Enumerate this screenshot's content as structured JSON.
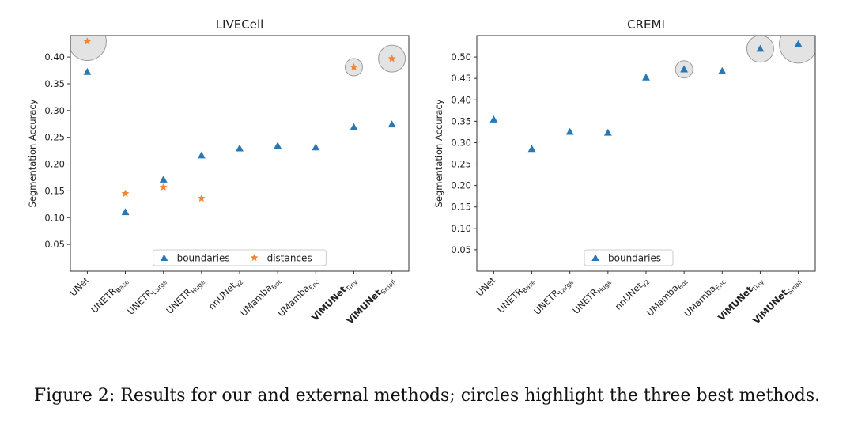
{
  "caption": "Figure 2: Results for our and external methods; circles highlight the three best methods.",
  "colors": {
    "boundaries": "#2878b5",
    "distances": "#ef8636",
    "highlight_fill": "#d9d9d9",
    "highlight_stroke": "#9a9a9a",
    "axes": "#333333"
  },
  "chart_data": [
    {
      "type": "scatter",
      "title": "LIVECell",
      "xlabel": "",
      "ylabel": "Segmentation Accuracy",
      "ylim": [
        0.0,
        0.44
      ],
      "yticks": [
        0.05,
        0.1,
        0.15,
        0.2,
        0.25,
        0.3,
        0.35,
        0.4
      ],
      "grid": false,
      "legend_position": "lower-center",
      "categories": [
        {
          "base": "UNet",
          "sub": "",
          "bold": false
        },
        {
          "base": "UNETR",
          "sub": "Base",
          "bold": false
        },
        {
          "base": "UNETR",
          "sub": "Large",
          "bold": false
        },
        {
          "base": "UNETR",
          "sub": "Huge",
          "bold": false
        },
        {
          "base": "nnUNet",
          "sub": "v2",
          "bold": false
        },
        {
          "base": "UMamba",
          "sub": "Bot",
          "bold": false
        },
        {
          "base": "UMamba",
          "sub": "Enc",
          "bold": false
        },
        {
          "base": "ViMUNet",
          "sub": "Tiny",
          "bold": true
        },
        {
          "base": "ViMUNet",
          "sub": "Small",
          "bold": true
        }
      ],
      "series": [
        {
          "name": "boundaries",
          "marker": "triangle",
          "values": [
            0.372,
            0.11,
            0.171,
            0.216,
            0.229,
            0.234,
            0.231,
            0.269,
            0.274
          ]
        },
        {
          "name": "distances",
          "marker": "star",
          "values": [
            0.429,
            0.145,
            0.157,
            0.136,
            null,
            null,
            null,
            0.381,
            0.397
          ]
        }
      ],
      "highlights": [
        {
          "category": 0,
          "value": 0.429,
          "size": 3
        },
        {
          "category": 7,
          "value": 0.381,
          "size": 1
        },
        {
          "category": 8,
          "value": 0.397,
          "size": 2
        }
      ]
    },
    {
      "type": "scatter",
      "title": "CREMI",
      "xlabel": "",
      "ylabel": "Segmentation Accuracy",
      "ylim": [
        0.0,
        0.55
      ],
      "yticks": [
        0.05,
        0.1,
        0.15,
        0.2,
        0.25,
        0.3,
        0.35,
        0.4,
        0.45,
        0.5
      ],
      "grid": false,
      "legend_position": "lower-center",
      "categories": [
        {
          "base": "UNet",
          "sub": "",
          "bold": false
        },
        {
          "base": "UNETR",
          "sub": "Base",
          "bold": false
        },
        {
          "base": "UNETR",
          "sub": "Large",
          "bold": false
        },
        {
          "base": "UNETR",
          "sub": "Huge",
          "bold": false
        },
        {
          "base": "nnUNet",
          "sub": "v2",
          "bold": false
        },
        {
          "base": "UMamba",
          "sub": "Bot",
          "bold": false
        },
        {
          "base": "UMamba",
          "sub": "Enc",
          "bold": false
        },
        {
          "base": "ViMUNet",
          "sub": "Tiny",
          "bold": true
        },
        {
          "base": "ViMUNet",
          "sub": "Small",
          "bold": true
        }
      ],
      "series": [
        {
          "name": "boundaries",
          "marker": "triangle",
          "values": [
            0.354,
            0.285,
            0.325,
            0.323,
            0.452,
            0.471,
            0.467,
            0.519,
            0.53
          ]
        }
      ],
      "highlights": [
        {
          "category": 5,
          "value": 0.471,
          "size": 1
        },
        {
          "category": 7,
          "value": 0.519,
          "size": 2
        },
        {
          "category": 8,
          "value": 0.53,
          "size": 3
        }
      ]
    }
  ]
}
